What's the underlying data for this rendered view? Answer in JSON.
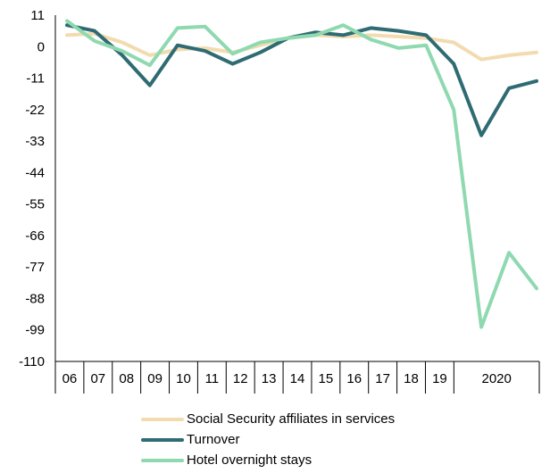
{
  "chart_data": {
    "type": "line",
    "title": "",
    "xlabel": "",
    "ylabel": "",
    "ylim": [
      -110,
      11
    ],
    "yticks": [
      11,
      0,
      -11,
      -22,
      -33,
      -44,
      -55,
      -66,
      -77,
      -88,
      -99,
      -110
    ],
    "x_tick_labels": [
      "06",
      "07",
      "08",
      "09",
      "10",
      "11",
      "12",
      "13",
      "14",
      "15",
      "16",
      "17",
      "18",
      "19",
      "",
      "2020",
      ""
    ],
    "legend_position": "bottom",
    "series": [
      {
        "name": "Social Security affiliates in services",
        "color": "#f2dcaf",
        "values": [
          4,
          4.5,
          1.5,
          -3,
          -1,
          -0.5,
          -2,
          0.5,
          3,
          4,
          3.5,
          4,
          3.5,
          3,
          1.5,
          -4.5,
          -3,
          -2
        ]
      },
      {
        "name": "Turnover",
        "color": "#2f6b73",
        "values": [
          7.5,
          5.5,
          -3,
          -13.5,
          0.5,
          -1.5,
          -6,
          -2,
          3,
          5,
          4,
          6.5,
          5.5,
          4,
          -6,
          -31,
          -14.5,
          -12
        ]
      },
      {
        "name": "Hotel overnight stays",
        "color": "#8fd9b0",
        "values": [
          9,
          2,
          -1.5,
          -6.5,
          6.5,
          7,
          -2.5,
          1.5,
          3,
          4,
          7.5,
          2.5,
          -0.5,
          0.5,
          -22,
          -98,
          -72,
          -84.5
        ]
      }
    ]
  }
}
